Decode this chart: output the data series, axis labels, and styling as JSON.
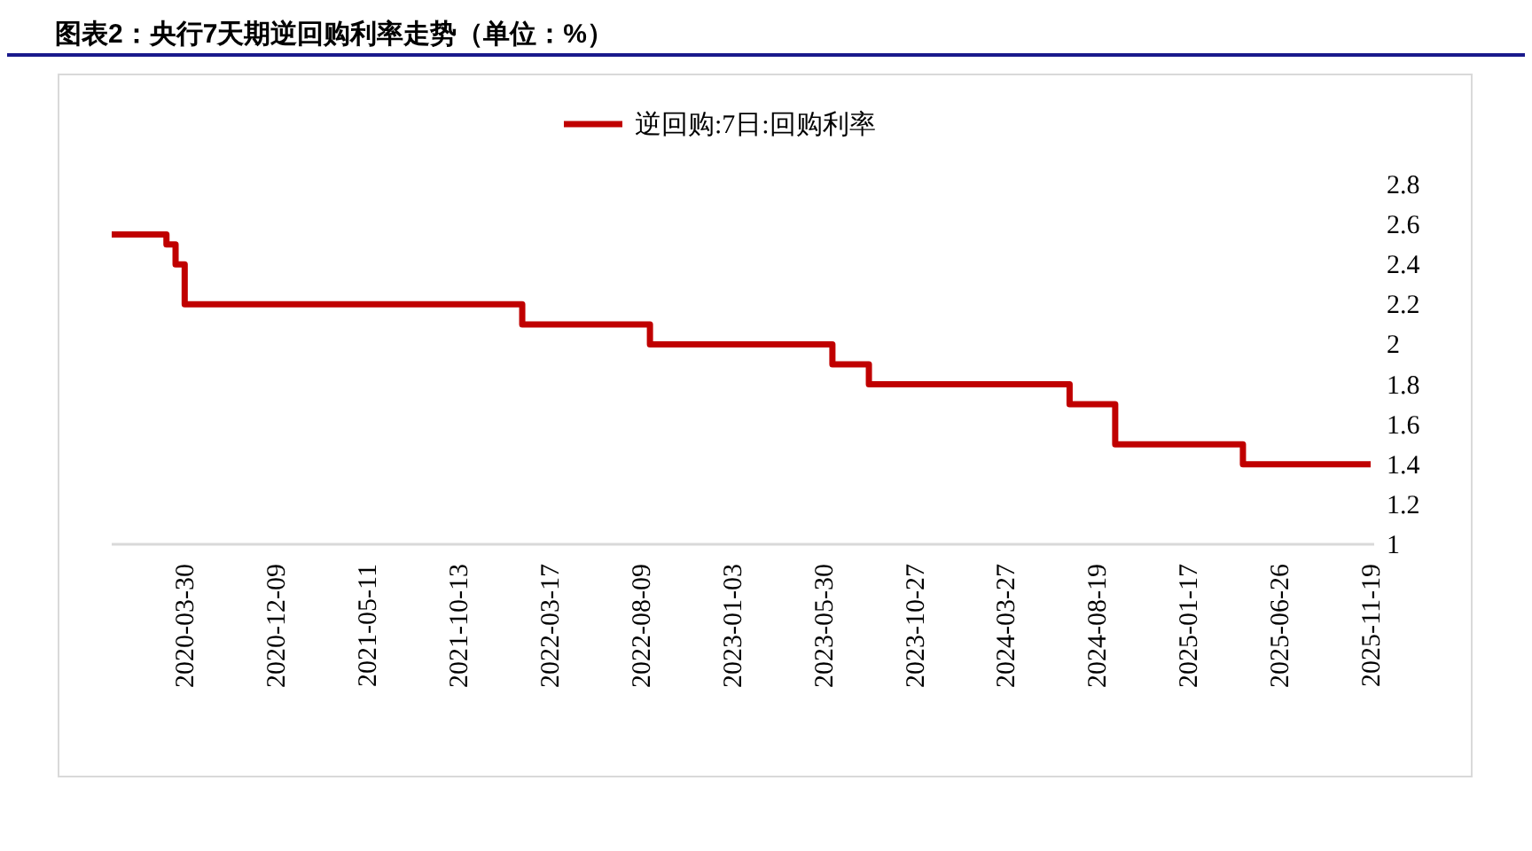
{
  "chart_data": {
    "type": "step",
    "title": "图表2：央行7天期逆回购利率走势（单位：%）",
    "categories": [
      null,
      null,
      null,
      null,
      null,
      null,
      null,
      null,
      "2020-03-30",
      null,
      null,
      null,
      null,
      null,
      null,
      null,
      null,
      null,
      "2020-12-09",
      null,
      null,
      null,
      null,
      null,
      null,
      null,
      null,
      null,
      "2021-05-11",
      null,
      null,
      null,
      null,
      null,
      null,
      null,
      null,
      null,
      "2021-10-13",
      null,
      null,
      null,
      null,
      null,
      null,
      null,
      null,
      null,
      "2022-03-17",
      null,
      null,
      null,
      null,
      null,
      null,
      null,
      null,
      null,
      "2022-08-09",
      null,
      null,
      null,
      null,
      null,
      null,
      null,
      null,
      null,
      "2023-01-03",
      null,
      null,
      null,
      null,
      null,
      null,
      null,
      null,
      null,
      "2023-05-30",
      null,
      null,
      null,
      null,
      null,
      null,
      null,
      null,
      null,
      "2023-10-27",
      null,
      null,
      null,
      null,
      null,
      null,
      null,
      null,
      null,
      "2024-03-27",
      null,
      null,
      null,
      null,
      null,
      null,
      null,
      null,
      null,
      "2024-08-19",
      null,
      null,
      null,
      null,
      null,
      null,
      null,
      null,
      null,
      "2025-01-17",
      null,
      null,
      null,
      null,
      null,
      null,
      null,
      null,
      null,
      "2025-06-26",
      null,
      null,
      null,
      null,
      null,
      null,
      null,
      null,
      null,
      "2025-11-19"
    ],
    "series": [
      {
        "name": "逆回购:7日:回购利率",
        "color": "#c00000",
        "values": [
          2.55,
          2.55,
          2.55,
          2.55,
          2.55,
          2.55,
          2.5,
          2.4,
          2.2,
          2.2,
          2.2,
          2.2,
          2.2,
          2.2,
          2.2,
          2.2,
          2.2,
          2.2,
          2.2,
          2.2,
          2.2,
          2.2,
          2.2,
          2.2,
          2.2,
          2.2,
          2.2,
          2.2,
          2.2,
          2.2,
          2.2,
          2.2,
          2.2,
          2.2,
          2.2,
          2.2,
          2.2,
          2.2,
          2.2,
          2.2,
          2.2,
          2.2,
          2.2,
          2.2,
          2.2,
          2.1,
          2.1,
          2.1,
          2.1,
          2.1,
          2.1,
          2.1,
          2.1,
          2.1,
          2.1,
          2.1,
          2.1,
          2.1,
          2.1,
          2.0,
          2.0,
          2.0,
          2.0,
          2.0,
          2.0,
          2.0,
          2.0,
          2.0,
          2.0,
          2.0,
          2.0,
          2.0,
          2.0,
          2.0,
          2.0,
          2.0,
          2.0,
          2.0,
          2.0,
          1.9,
          1.9,
          1.9,
          1.9,
          1.8,
          1.8,
          1.8,
          1.8,
          1.8,
          1.8,
          1.8,
          1.8,
          1.8,
          1.8,
          1.8,
          1.8,
          1.8,
          1.8,
          1.8,
          1.8,
          1.8,
          1.8,
          1.8,
          1.8,
          1.8,
          1.8,
          1.7,
          1.7,
          1.7,
          1.7,
          1.7,
          1.5,
          1.5,
          1.5,
          1.5,
          1.5,
          1.5,
          1.5,
          1.5,
          1.5,
          1.5,
          1.5,
          1.5,
          1.5,
          1.5,
          1.4,
          1.4,
          1.4,
          1.4,
          1.4,
          1.4,
          1.4,
          1.4,
          1.4,
          1.4,
          1.4,
          1.4,
          1.4,
          1.4,
          1.4
        ]
      }
    ],
    "ylim": [
      1,
      2.8
    ],
    "yticks": [
      2.8,
      2.6,
      2.4,
      2.2,
      2,
      1.8,
      1.6,
      1.4,
      1.2,
      1
    ],
    "legend": "top"
  }
}
